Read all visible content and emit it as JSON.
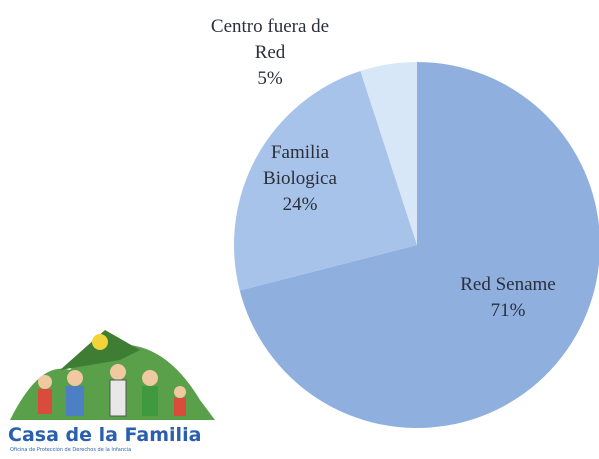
{
  "chart_data": {
    "type": "pie",
    "categories": [
      "Red Sename",
      "Familia Biologica",
      "Centro fuera de Red"
    ],
    "values": [
      71,
      24,
      5
    ],
    "value_labels": [
      "71%",
      "24%",
      "5%"
    ],
    "colors": [
      "#8fafdf",
      "#a8c3ea",
      "#d7e7f8"
    ]
  },
  "logo": {
    "title": "Casa de la Familia",
    "subtitle": "Oficina de Protección de Derechos de la Infancia"
  }
}
